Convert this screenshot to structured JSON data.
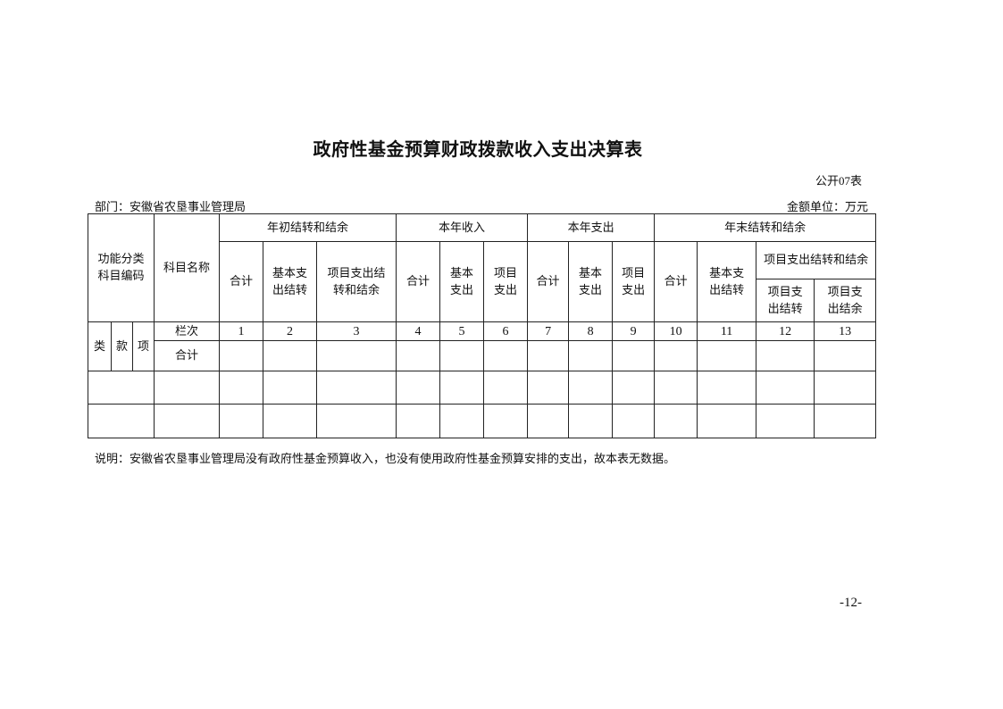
{
  "title": "政府性基金预算财政拨款收入支出决算表",
  "form_number": "公开07表",
  "department": "部门：安徽省农垦事业管理局",
  "unit": "金额单位：万元",
  "table": {
    "code_header": "功能分类科目编码",
    "name_header": "科目名称",
    "groups": [
      "年初结转和结余",
      "本年收入",
      "本年支出",
      "年末结转和结余"
    ],
    "sub": {
      "begin": [
        "合计",
        "基本支出结转",
        "项目支出结转和结余"
      ],
      "income": [
        "合计",
        "基本支出",
        "项目支出"
      ],
      "expense": [
        "合计",
        "基本支出",
        "项目支出"
      ],
      "end": [
        "合计",
        "基本支出结转",
        "项目支出结转和结余"
      ],
      "end_project": [
        "项目支出结转",
        "项目支出结余"
      ]
    },
    "code_parts": [
      "类",
      "款",
      "项"
    ],
    "column_index_label": "栏次",
    "column_numbers": [
      "1",
      "2",
      "3",
      "4",
      "5",
      "6",
      "7",
      "8",
      "9",
      "10",
      "11",
      "12",
      "13"
    ],
    "total_label": "合计"
  },
  "note": "说明：安徽省农垦事业管理局没有政府性基金预算收入，也没有使用政府性基金预算安排的支出，故本表无数据。",
  "page_number": "-12-"
}
